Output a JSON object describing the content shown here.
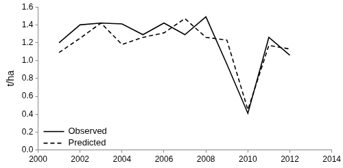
{
  "chart_data": {
    "type": "line",
    "y_label": "t/ha",
    "x": [
      2001,
      2002,
      2003,
      2004,
      2005,
      2006,
      2007,
      2008,
      2009,
      2010,
      2011,
      2012
    ],
    "series": [
      {
        "name": "Observed",
        "color": "#000000",
        "line_style": "solid",
        "marker": "none",
        "values": [
          1.2,
          1.4,
          1.42,
          1.41,
          1.29,
          1.42,
          1.29,
          1.49,
          0.96,
          0.41,
          1.26,
          1.06
        ]
      },
      {
        "name": "Predicted",
        "color": "#000000",
        "line_style": "dashed",
        "marker": "none",
        "values": [
          1.09,
          1.25,
          1.42,
          1.18,
          1.26,
          1.31,
          1.47,
          1.26,
          1.23,
          0.45,
          1.17,
          1.13
        ]
      }
    ],
    "xlim": [
      2000,
      2014
    ],
    "xticks": [
      2000,
      2002,
      2004,
      2006,
      2008,
      2010,
      2012,
      2014
    ],
    "ylim": [
      0,
      1.6
    ],
    "yticks": [
      {
        "value": 0,
        "label": "0.0"
      },
      {
        "value": 0.2,
        "label": "0.2"
      },
      {
        "value": 0.4,
        "label": "0.4"
      },
      {
        "value": 0.6,
        "label": "0.6"
      },
      {
        "value": 0.8,
        "label": "0.8"
      },
      {
        "value": 1.0,
        "label": "1.0"
      },
      {
        "value": 1.2,
        "label": "1.2"
      },
      {
        "value": 1.4,
        "label": "1.4"
      },
      {
        "value": 1.6,
        "label": "1.6"
      }
    ],
    "grid": false,
    "legend": "lower left"
  }
}
